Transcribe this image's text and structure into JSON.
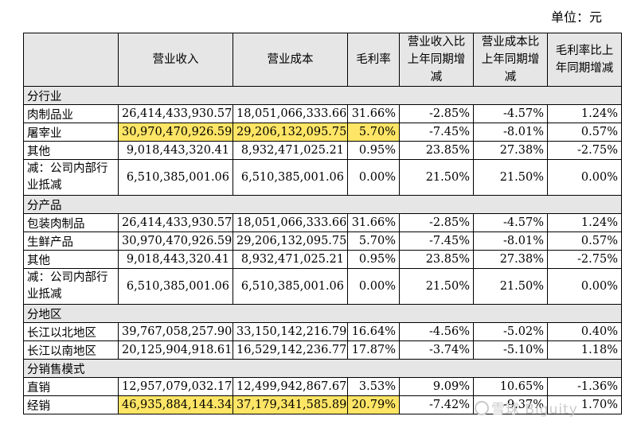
{
  "unit_label": "单位：元",
  "headers": [
    "营业收入",
    "营业成本",
    "毛利率",
    "营业收入比上年同期增减",
    "营业成本比上年同期增减",
    "毛利率比上年同期增减"
  ],
  "sections": [
    {
      "title": "分行业",
      "rows": [
        {
          "label": "肉制品业",
          "cells": [
            "26,414,433,930.57",
            "18,051,066,333.66",
            "31.66%",
            "-2.85%",
            "-4.57%",
            "1.24%"
          ]
        },
        {
          "label": "屠宰业",
          "cells": [
            "30,970,470,926.59",
            "29,206,132,095.75",
            "5.70%",
            "-7.45%",
            "-8.01%",
            "0.57%"
          ],
          "highlight": [
            0,
            1,
            2
          ]
        },
        {
          "label": "其他",
          "cells": [
            "9,018,443,320.41",
            "8,932,471,025.21",
            "0.95%",
            "23.85%",
            "27.38%",
            "-2.75%"
          ]
        },
        {
          "label": "减：公司内部行业抵减",
          "cells": [
            "6,510,385,001.06",
            "6,510,385,001.06",
            "0.00%",
            "21.50%",
            "21.50%",
            "0.00%"
          ],
          "tall": true
        }
      ]
    },
    {
      "title": "分产品",
      "rows": [
        {
          "label": "包装肉制品",
          "cells": [
            "26,414,433,930.57",
            "18,051,066,333.66",
            "31.66%",
            "-2.85%",
            "-4.57%",
            "1.24%"
          ]
        },
        {
          "label": "生鲜产品",
          "cells": [
            "30,970,470,926.59",
            "29,206,132,095.75",
            "5.70%",
            "-7.45%",
            "-8.01%",
            "0.57%"
          ]
        },
        {
          "label": "其他",
          "cells": [
            "9,018,443,320.41",
            "8,932,471,025.21",
            "0.95%",
            "23.85%",
            "27.38%",
            "-2.75%"
          ]
        },
        {
          "label": "减：公司内部行业抵减",
          "cells": [
            "6,510,385,001.06",
            "6,510,385,001.06",
            "0.00%",
            "21.50%",
            "21.50%",
            "0.00%"
          ],
          "tall": true
        }
      ]
    },
    {
      "title": "分地区",
      "rows": [
        {
          "label": "长江以北地区",
          "cells": [
            "39,767,058,257.90",
            "33,150,142,216.79",
            "16.64%",
            "-4.56%",
            "-5.02%",
            "0.40%"
          ]
        },
        {
          "label": "长江以南地区",
          "cells": [
            "20,125,904,918.61",
            "16,529,142,236.77",
            "17.87%",
            "-3.74%",
            "-5.10%",
            "1.18%"
          ]
        }
      ]
    },
    {
      "title": "分销售模式",
      "rows": [
        {
          "label": "直销",
          "cells": [
            "12,957,079,032.17",
            "12,499,942,867.67",
            "3.53%",
            "9.09%",
            "10.65%",
            "-1.36%"
          ]
        },
        {
          "label": "经销",
          "cells": [
            "46,935,884,144.34",
            "37,179,341,585.89",
            "20.79%",
            "-7.42%",
            "-9.37%",
            "1.70%"
          ],
          "highlight": [
            0,
            1,
            2
          ]
        }
      ]
    }
  ],
  "watermark": "雪球 Biguity"
}
